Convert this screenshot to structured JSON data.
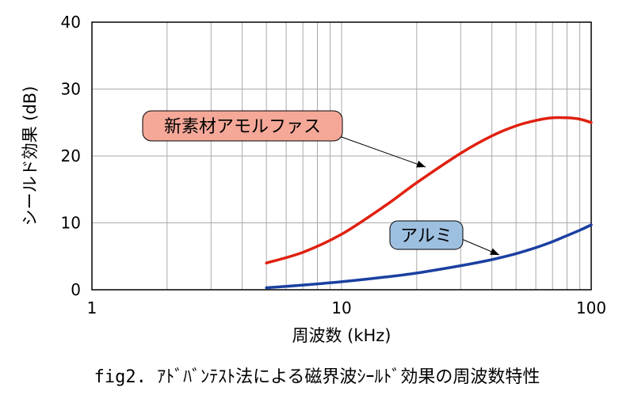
{
  "caption": "fig2. ｱﾄﾞﾊﾞﾝﾃｽﾄ法による磁界波ｼｰﾙﾄﾞ効果の周波数特性",
  "chart_data": {
    "type": "line",
    "xlabel": "周波数 (kHz)",
    "ylabel": "シールド効果 (dB)",
    "x_scale": "log",
    "xlim": [
      1,
      100
    ],
    "ylim": [
      0,
      40
    ],
    "x_ticks": [
      1,
      10,
      100
    ],
    "x_tick_labels": [
      "1",
      "10",
      "100"
    ],
    "y_ticks": [
      0,
      10,
      20,
      30,
      40
    ],
    "y_tick_labels": [
      "0",
      "10",
      "20",
      "30",
      "40"
    ],
    "grid": true,
    "series": [
      {
        "name": "新素材アモルファス",
        "color": "#e02010",
        "callout_color": "#f5a898",
        "x": [
          5,
          7,
          10,
          15,
          20,
          30,
          40,
          50,
          60,
          70,
          80,
          90,
          100
        ],
        "y": [
          4.0,
          5.6,
          8.3,
          12.6,
          16.0,
          20.4,
          23.0,
          24.5,
          25.3,
          25.7,
          25.7,
          25.5,
          25.0
        ]
      },
      {
        "name": "アルミ",
        "color": "#1a40a0",
        "callout_color": "#9ec0e0",
        "x": [
          5,
          7,
          10,
          15,
          20,
          30,
          40,
          50,
          60,
          70,
          80,
          90,
          100
        ],
        "y": [
          0.3,
          0.7,
          1.2,
          1.9,
          2.5,
          3.6,
          4.5,
          5.4,
          6.3,
          7.2,
          8.1,
          8.9,
          9.7
        ]
      }
    ]
  }
}
